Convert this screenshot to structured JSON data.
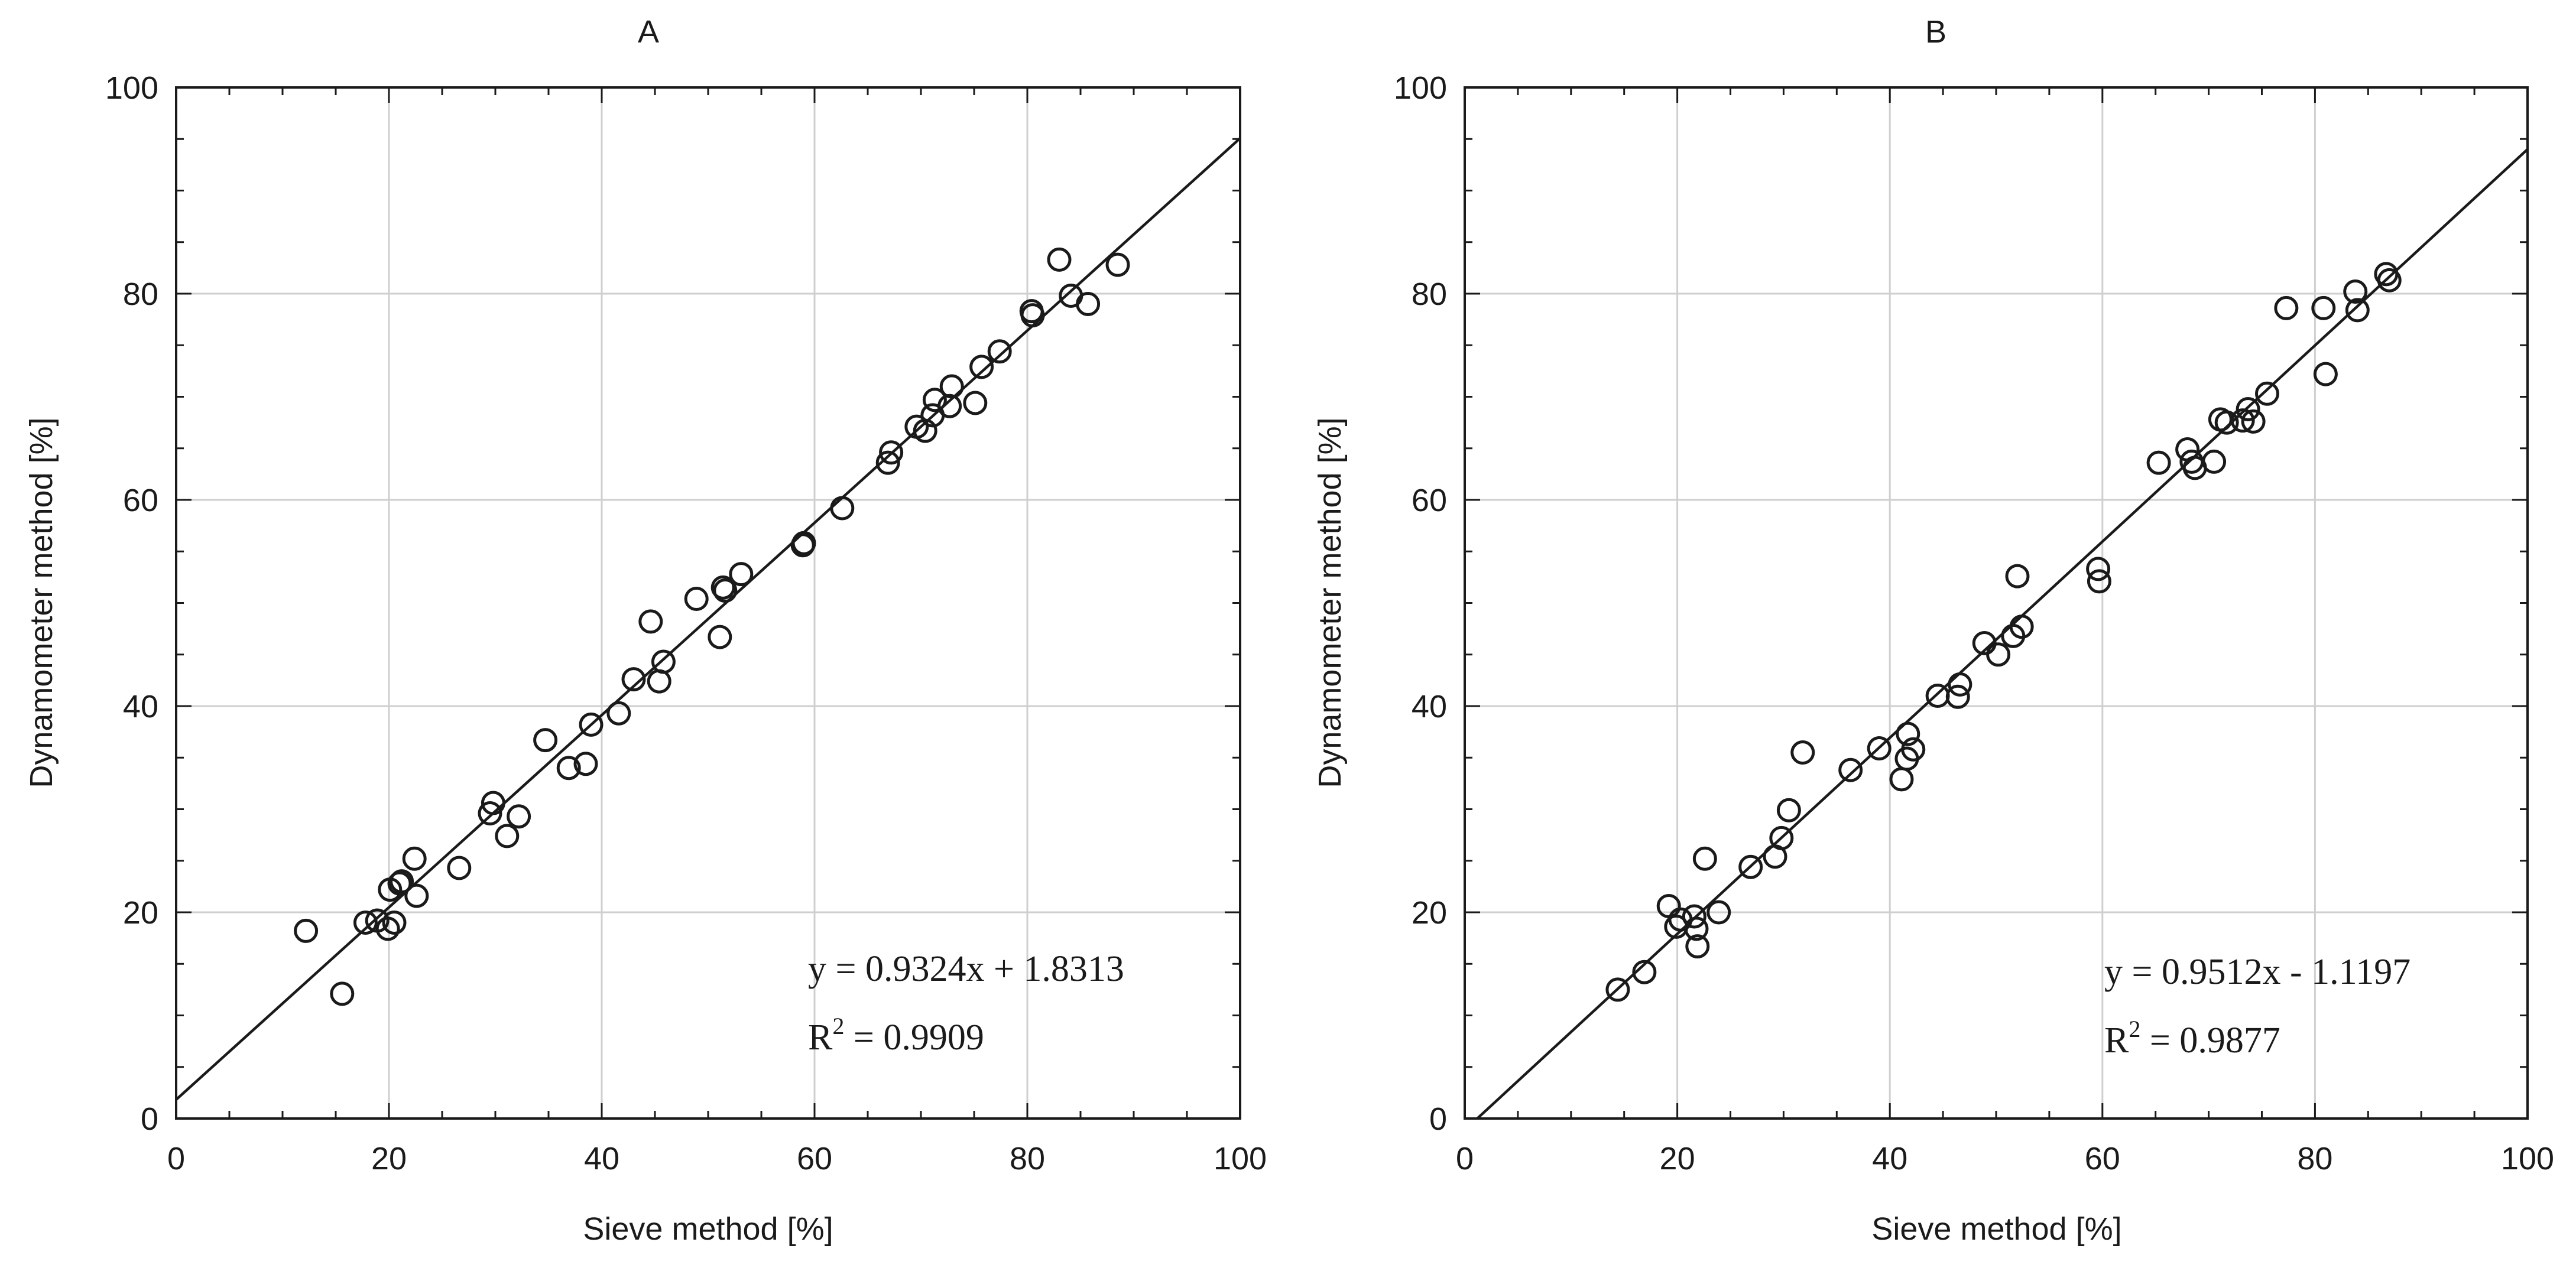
{
  "chart_data": [
    {
      "type": "scatter",
      "title": "A",
      "xlabel": "Sieve method [%]",
      "ylabel": "Dynamometer method [%]",
      "xlim": [
        0,
        100
      ],
      "ylim": [
        0,
        100
      ],
      "xticks": [
        "0",
        "20",
        "40",
        "60",
        "80",
        "100"
      ],
      "yticks": [
        "0",
        "20",
        "40",
        "60",
        "80",
        "100"
      ],
      "grid": true,
      "marker": "open-circle",
      "trendline": {
        "slope": 0.9324,
        "intercept": 1.8313
      },
      "annotation": {
        "equation": "y = 0.9324x + 1.8313",
        "r2_prefix": "R",
        "r2_sup": "2",
        "r2_value": " = 0.9909"
      },
      "points": [
        [
          12.2,
          18.2
        ],
        [
          15.6,
          12.1
        ],
        [
          17.8,
          19.0
        ],
        [
          18.9,
          19.2
        ],
        [
          19.9,
          18.4
        ],
        [
          20.1,
          22.2
        ],
        [
          20.5,
          19.0
        ],
        [
          21.0,
          22.8
        ],
        [
          21.2,
          23.0
        ],
        [
          22.4,
          25.2
        ],
        [
          22.6,
          21.6
        ],
        [
          26.6,
          24.3
        ],
        [
          29.5,
          29.6
        ],
        [
          29.8,
          30.6
        ],
        [
          31.1,
          27.4
        ],
        [
          32.2,
          29.3
        ],
        [
          34.7,
          36.7
        ],
        [
          36.9,
          34.0
        ],
        [
          38.5,
          34.4
        ],
        [
          39.0,
          38.2
        ],
        [
          41.6,
          39.3
        ],
        [
          43.0,
          42.6
        ],
        [
          44.6,
          48.2
        ],
        [
          45.4,
          42.4
        ],
        [
          45.8,
          44.3
        ],
        [
          48.9,
          50.4
        ],
        [
          51.1,
          46.7
        ],
        [
          51.4,
          51.5
        ],
        [
          51.6,
          51.2
        ],
        [
          53.1,
          52.8
        ],
        [
          58.9,
          55.6
        ],
        [
          59.0,
          55.8
        ],
        [
          62.6,
          59.2
        ],
        [
          66.9,
          63.6
        ],
        [
          67.2,
          64.6
        ],
        [
          69.6,
          67.1
        ],
        [
          70.4,
          66.7
        ],
        [
          71.1,
          68.2
        ],
        [
          71.3,
          69.7
        ],
        [
          72.7,
          69.1
        ],
        [
          72.9,
          71.0
        ],
        [
          75.1,
          69.4
        ],
        [
          75.7,
          72.9
        ],
        [
          77.4,
          74.4
        ],
        [
          80.4,
          78.3
        ],
        [
          80.5,
          77.9
        ],
        [
          83.0,
          83.3
        ],
        [
          84.1,
          79.8
        ],
        [
          85.7,
          79.0
        ],
        [
          88.5,
          82.8
        ]
      ]
    },
    {
      "type": "scatter",
      "title": "B",
      "xlabel": "Sieve method [%]",
      "ylabel": "Dynamometer method [%]",
      "xlim": [
        0,
        100
      ],
      "ylim": [
        0,
        100
      ],
      "xticks": [
        "0",
        "20",
        "40",
        "60",
        "80",
        "100"
      ],
      "yticks": [
        "0",
        "20",
        "40",
        "60",
        "80",
        "100"
      ],
      "grid": true,
      "marker": "open-circle",
      "trendline": {
        "slope": 0.9512,
        "intercept": -1.1197
      },
      "annotation": {
        "equation": "y = 0.9512x - 1.1197",
        "r2_prefix": "R",
        "r2_sup": "2",
        "r2_value": " = 0.9877"
      },
      "points": [
        [
          14.4,
          12.5
        ],
        [
          16.9,
          14.2
        ],
        [
          19.2,
          20.6
        ],
        [
          19.9,
          18.6
        ],
        [
          20.3,
          19.3
        ],
        [
          21.6,
          19.6
        ],
        [
          21.8,
          18.4
        ],
        [
          21.9,
          16.7
        ],
        [
          22.6,
          25.2
        ],
        [
          23.9,
          20.0
        ],
        [
          26.9,
          24.4
        ],
        [
          29.2,
          25.4
        ],
        [
          29.8,
          27.2
        ],
        [
          30.5,
          29.9
        ],
        [
          31.8,
          35.5
        ],
        [
          36.3,
          33.8
        ],
        [
          39.0,
          35.9
        ],
        [
          41.1,
          32.9
        ],
        [
          41.6,
          34.9
        ],
        [
          41.7,
          37.3
        ],
        [
          42.2,
          35.8
        ],
        [
          44.5,
          41.0
        ],
        [
          46.4,
          40.9
        ],
        [
          46.6,
          42.1
        ],
        [
          48.9,
          46.1
        ],
        [
          50.2,
          45.0
        ],
        [
          51.6,
          46.8
        ],
        [
          52.0,
          52.6
        ],
        [
          52.4,
          47.7
        ],
        [
          59.6,
          53.3
        ],
        [
          59.7,
          52.1
        ],
        [
          65.3,
          63.6
        ],
        [
          68.0,
          64.9
        ],
        [
          68.4,
          63.7
        ],
        [
          68.7,
          63.1
        ],
        [
          70.5,
          63.7
        ],
        [
          71.1,
          67.8
        ],
        [
          71.7,
          67.5
        ],
        [
          73.2,
          67.7
        ],
        [
          73.7,
          68.8
        ],
        [
          74.2,
          67.6
        ],
        [
          75.5,
          70.3
        ],
        [
          77.3,
          78.6
        ],
        [
          80.8,
          78.6
        ],
        [
          81.0,
          72.2
        ],
        [
          83.8,
          80.2
        ],
        [
          84.0,
          78.4
        ],
        [
          86.7,
          81.9
        ],
        [
          87.0,
          81.3
        ]
      ]
    }
  ]
}
